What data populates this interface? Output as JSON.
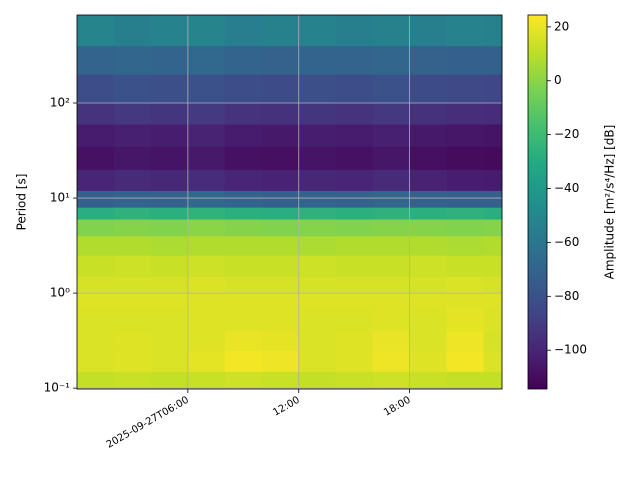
{
  "chart_data": {
    "type": "heatmap",
    "xlabel": null,
    "ylabel": "Period [s]",
    "colorbar_label": "Amplitude [m²/s⁴/Hz] [dB]",
    "colormap": "viridis",
    "yscale": "log",
    "grid": true,
    "x_bins": [
      "2025-09-27T00:00",
      "2025-09-27T02:00",
      "2025-09-27T04:00",
      "2025-09-27T06:00",
      "2025-09-27T08:00",
      "2025-09-27T10:00",
      "2025-09-27T12:00",
      "2025-09-27T14:00",
      "2025-09-27T16:00",
      "2025-09-27T18:00",
      "2025-09-27T20:00",
      "2025-09-27T22:00",
      "2025-09-27T23:00"
    ],
    "period_bins": [
      0.098,
      0.15,
      0.25,
      0.4,
      0.7,
      1,
      1.5,
      2.5,
      4,
      6,
      8,
      12,
      20,
      35,
      60,
      100,
      200,
      400,
      843
    ],
    "values": [
      [
        12,
        13,
        12,
        13,
        14,
        13,
        12,
        13,
        14,
        13,
        12,
        12
      ],
      [
        17,
        18,
        17,
        19,
        22,
        21,
        17,
        18,
        21,
        18,
        22,
        17
      ],
      [
        17,
        18,
        17,
        18,
        20,
        19,
        17,
        18,
        20,
        17,
        21,
        16
      ],
      [
        17,
        17,
        17,
        18,
        18,
        18,
        17,
        17,
        18,
        17,
        19,
        17
      ],
      [
        18,
        18,
        18,
        18,
        18,
        18,
        18,
        18,
        18,
        18,
        18,
        18
      ],
      [
        16,
        16,
        16,
        17,
        16,
        16,
        16,
        16,
        16,
        16,
        17,
        16
      ],
      [
        13,
        14,
        13,
        14,
        13,
        13,
        14,
        13,
        13,
        14,
        13,
        13
      ],
      [
        8,
        8,
        7,
        8,
        8,
        8,
        7,
        8,
        8,
        8,
        7,
        8
      ],
      [
        -2,
        -1,
        -2,
        0,
        -1,
        -2,
        -1,
        -2,
        -1,
        -1,
        -2,
        -1
      ],
      [
        -28,
        -26,
        -27,
        -25,
        -27,
        -28,
        -26,
        -27,
        -26,
        -27,
        -26,
        -28
      ],
      [
        -72,
        -70,
        -71,
        -68,
        -70,
        -72,
        -70,
        -71,
        -69,
        -71,
        -72,
        -73
      ],
      [
        -100,
        -98,
        -99,
        -97,
        -100,
        -101,
        -99,
        -100,
        -98,
        -101,
        -103,
        -104
      ],
      [
        -108,
        -106,
        -107,
        -105,
        -108,
        -109,
        -107,
        -108,
        -106,
        -109,
        -110,
        -111
      ],
      [
        -104,
        -102,
        -103,
        -101,
        -104,
        -105,
        -103,
        -104,
        -102,
        -105,
        -106,
        -107
      ],
      [
        -94,
        -92,
        -93,
        -91,
        -94,
        -95,
        -93,
        -94,
        -92,
        -95,
        -96,
        -97
      ],
      [
        -82,
        -80,
        -81,
        -80,
        -82,
        -83,
        -81,
        -82,
        -80,
        -83,
        -84,
        -85
      ],
      [
        -70,
        -69,
        -70,
        -68,
        -70,
        -71,
        -70,
        -70,
        -69,
        -71,
        -72,
        -72
      ],
      [
        -52,
        -55,
        -53,
        -52,
        -56,
        -54,
        -53,
        -55,
        -54,
        -55,
        -53,
        -54
      ]
    ],
    "xlim": [
      "2025-09-27T00:00",
      "2025-09-27T23:00"
    ],
    "xticks": [
      {
        "value": "2025-09-27T06:00",
        "label": "2025-09-27T06:00"
      },
      {
        "value": "2025-09-27T12:00",
        "label": "12:00"
      },
      {
        "value": "2025-09-27T18:00",
        "label": "18:00"
      }
    ],
    "ylim": [
      0.098,
      843
    ],
    "yticks": [
      {
        "value": 0.1,
        "label": "10⁻¹"
      },
      {
        "value": 1,
        "label": "10⁰"
      },
      {
        "value": 10,
        "label": "10¹"
      },
      {
        "value": 100,
        "label": "10²"
      }
    ],
    "clim": [
      -114.4,
      24.4
    ],
    "cticks": [
      {
        "value": -100,
        "label": "−100"
      },
      {
        "value": -80,
        "label": "−80"
      },
      {
        "value": -60,
        "label": "−60"
      },
      {
        "value": -40,
        "label": "−40"
      },
      {
        "value": -20,
        "label": "−20"
      },
      0,
      20
    ]
  }
}
